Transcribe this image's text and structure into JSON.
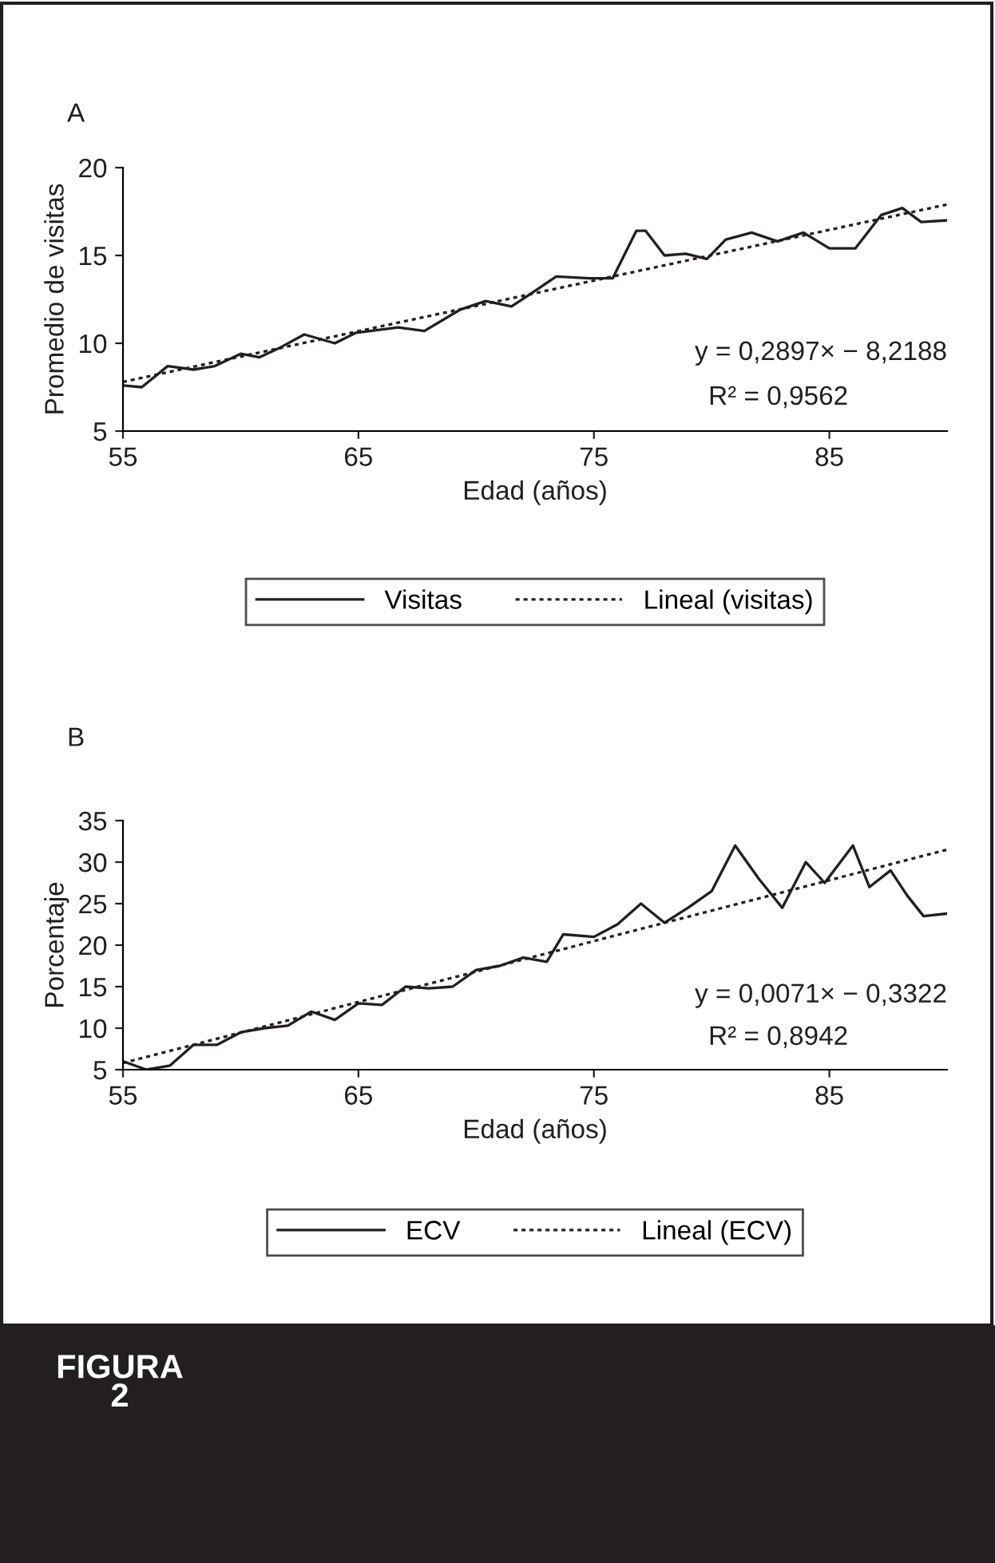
{
  "chart_data": [
    {
      "type": "line",
      "title": "A",
      "xlabel": "Edad (años)",
      "ylabel": "Promedio de visitas",
      "xlim": [
        55,
        90
      ],
      "xticks": [
        55,
        65,
        75,
        85
      ],
      "ylim": [
        5,
        20
      ],
      "yticks": [
        5,
        10,
        15,
        20
      ],
      "grid": false,
      "legend": "bottom",
      "marker": "none",
      "series": [
        {
          "name": "Visitas",
          "color": "#231f20",
          "line_style": "solid",
          "x": [
            55,
            55.8,
            56.9,
            58,
            58.9,
            60,
            60.8,
            61.6,
            62.7,
            64,
            64.9,
            66.7,
            67.8,
            69.3,
            70.4,
            71.5,
            72.3,
            73.4,
            74.8,
            75.8,
            76.8,
            77.2,
            78,
            78.9,
            79.8,
            80.6,
            81.7,
            82.8,
            83.9,
            85,
            86.1,
            87.2,
            88.1,
            88.9,
            90
          ],
          "values": [
            7.6,
            7.5,
            8.7,
            8.5,
            8.7,
            9.4,
            9.2,
            9.7,
            10.5,
            10,
            10.6,
            10.9,
            10.7,
            11.9,
            12.4,
            12.1,
            12.8,
            13.8,
            13.7,
            13.7,
            16.4,
            16.4,
            15,
            15.1,
            14.8,
            15.9,
            16.3,
            15.8,
            16.3,
            15.4,
            15.4,
            17.3,
            17.7,
            16.9,
            17
          ]
        },
        {
          "name": "Lineal (visitas)",
          "color": "#231f20",
          "line_style": "dotted",
          "x": [
            55,
            90
          ],
          "values": [
            7.8,
            17.9
          ]
        }
      ],
      "annotations": [
        "y = 0,2897× − 8,2188",
        "R² = 0,9562"
      ]
    },
    {
      "type": "line",
      "title": "B",
      "xlabel": "Edad (años)",
      "ylabel": "Porcentaje",
      "xlim": [
        55,
        90
      ],
      "xticks": [
        55,
        65,
        75,
        85
      ],
      "ylim": [
        5,
        35
      ],
      "yticks": [
        5,
        10,
        15,
        20,
        25,
        30,
        35
      ],
      "grid": false,
      "legend": "bottom",
      "marker": "none",
      "series": [
        {
          "name": "ECV",
          "color": "#231f20",
          "line_style": "solid",
          "x": [
            55,
            56,
            57,
            58,
            59,
            60,
            61,
            62,
            63,
            64,
            65,
            66,
            67,
            68,
            69,
            70,
            71,
            72,
            73,
            73.7,
            75,
            76,
            77,
            78,
            79,
            80,
            81,
            82,
            83,
            84,
            84.8,
            86,
            86.7,
            87.6,
            88.3,
            89,
            90
          ],
          "values": [
            6,
            5,
            5.5,
            8,
            8,
            9.5,
            10,
            10.3,
            12,
            11,
            13,
            12.8,
            15,
            14.8,
            15,
            17,
            17.5,
            18.5,
            18,
            21.3,
            21,
            22.5,
            25,
            22.7,
            24.5,
            26.5,
            32,
            28,
            24.5,
            30,
            27.5,
            32,
            27,
            29,
            26,
            23.5,
            23.8
          ]
        },
        {
          "name": "Lineal (ECV)",
          "color": "#231f20",
          "line_style": "dotted",
          "x": [
            55,
            90
          ],
          "values": [
            5.8,
            31.5
          ]
        }
      ],
      "annotations": [
        "y = 0,0071× − 0,3322",
        "R² = 0,8942",
        "FIGURA 2"
      ]
    }
  ]
}
